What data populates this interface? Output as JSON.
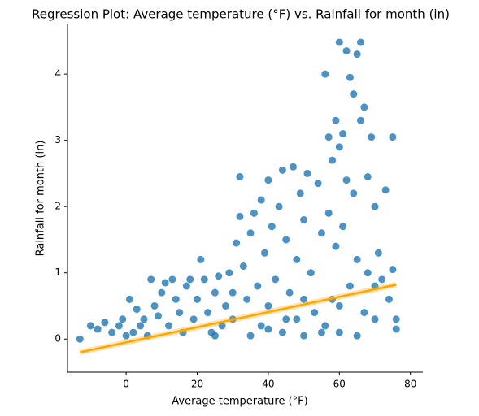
{
  "chart_data": {
    "type": "scatter",
    "title": "Regression Plot: Average temperature (°F) vs. Rainfall for month (in)",
    "x_label": "Average temperature (°F)",
    "y_label": "Rainfall for month (in)",
    "xlim": [
      -16.5,
      83.5
    ],
    "ylim": [
      -0.5,
      4.75
    ],
    "xticks": [
      0,
      20,
      40,
      60,
      80
    ],
    "yticks": [
      0,
      1,
      2,
      3,
      4
    ],
    "grid": false,
    "series": [
      {
        "color": "#1f77b4",
        "x": [
          -13,
          -10,
          -8,
          -6,
          -4,
          -2,
          -1,
          0,
          1,
          2,
          3,
          4,
          5,
          6,
          7,
          8,
          9,
          10,
          11,
          12,
          13,
          14,
          15,
          16,
          17,
          18,
          19,
          20,
          21,
          22,
          23,
          24,
          25,
          26,
          27,
          28,
          29,
          30,
          31,
          32,
          32,
          33,
          34,
          35,
          36,
          37,
          38,
          38,
          39,
          40,
          40,
          41,
          42,
          43,
          44,
          44,
          45,
          46,
          47,
          48,
          48,
          49,
          50,
          50,
          51,
          52,
          53,
          54,
          55,
          56,
          56,
          57,
          57,
          58,
          58,
          59,
          59,
          60,
          60,
          60,
          61,
          61,
          62,
          62,
          63,
          63,
          64,
          64,
          65,
          65,
          66,
          66,
          67,
          67,
          68,
          68,
          69,
          70,
          70,
          71,
          72,
          73,
          74,
          75,
          75,
          76,
          76,
          45,
          35,
          55,
          65,
          50,
          40,
          30,
          25,
          60,
          70
        ],
        "values": [
          0,
          0.2,
          0.15,
          0.25,
          0.1,
          0.2,
          0.3,
          0.05,
          0.6,
          0.1,
          0.45,
          0.2,
          0.3,
          0.05,
          0.9,
          0.5,
          0.35,
          0.7,
          0.85,
          0.2,
          0.9,
          0.6,
          0.4,
          0.1,
          0.8,
          0.9,
          0.3,
          0.6,
          1.2,
          0.9,
          0.4,
          0.1,
          0.7,
          0.95,
          0.2,
          0.5,
          1.0,
          0.3,
          1.45,
          1.85,
          2.45,
          1.1,
          0.6,
          1.6,
          1.9,
          0.8,
          2.1,
          0.2,
          1.3,
          2.4,
          0.5,
          1.7,
          0.9,
          2.0,
          2.55,
          0.1,
          1.5,
          0.7,
          2.6,
          1.2,
          0.3,
          2.2,
          1.8,
          0.05,
          2.5,
          1.0,
          0.4,
          2.35,
          1.6,
          4.0,
          0.2,
          3.05,
          1.9,
          2.7,
          0.6,
          3.3,
          1.4,
          4.48,
          2.9,
          0.1,
          3.1,
          1.7,
          4.35,
          2.4,
          3.95,
          0.8,
          3.7,
          2.2,
          4.3,
          1.2,
          4.48,
          3.3,
          3.5,
          0.4,
          2.45,
          1.0,
          3.05,
          2.0,
          0.3,
          1.3,
          0.9,
          2.25,
          0.6,
          3.05,
          1.05,
          0.15,
          0.3,
          0.3,
          0.05,
          0.1,
          0.05,
          0.6,
          0.15,
          0.7,
          0.05,
          0.5,
          0.8
        ]
      }
    ],
    "regression": {
      "color": "#ffa500",
      "x": [
        -13,
        76
      ],
      "values": [
        -0.2,
        0.82
      ]
    }
  }
}
